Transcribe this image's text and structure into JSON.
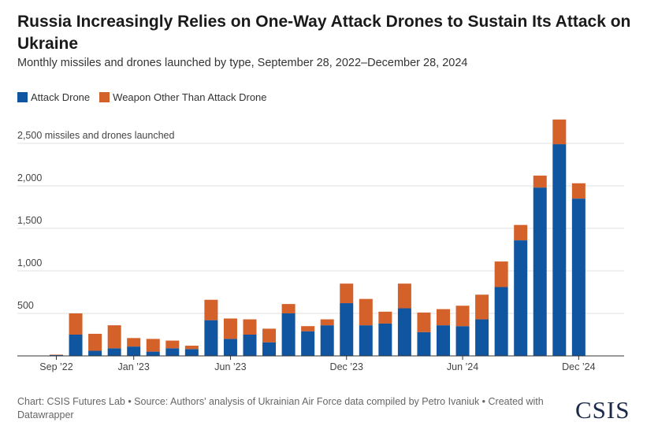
{
  "title": "Russia Increasingly Relies on One-Way Attack Drones to Sustain Its Attack on Ukraine",
  "subtitle": "Monthly missiles and drones launched by type, September 28, 2022–December 28, 2024",
  "legend": [
    {
      "label": "Attack Drone",
      "color": "#1055a0"
    },
    {
      "label": "Weapon Other Than Attack Drone",
      "color": "#d4602a"
    }
  ],
  "footer": "Chart: CSIS Futures Lab • Source: Authors' analysis of Ukrainian Air Force data compiled by Petro Ivaniuk • Created with Datawrapper",
  "logo": "CSIS",
  "chart_data": {
    "type": "bar",
    "stacked": true,
    "categories": [
      "Sep 2022",
      "Oct 2022",
      "Nov 2022",
      "Dec 2022",
      "Jan 2023",
      "Feb 2023",
      "Mar 2023",
      "Apr 2023",
      "May 2023",
      "Jun 2023",
      "Jul 2023",
      "Aug 2023",
      "Sep 2023",
      "Oct 2023",
      "Nov 2023",
      "Dec 2023",
      "Jan 2024",
      "Feb 2024",
      "Mar 2024",
      "Apr 2024",
      "May 2024",
      "Jun 2024",
      "Jul 2024",
      "Aug 2024",
      "Sep 2024",
      "Oct 2024",
      "Nov 2024",
      "Dec 2024"
    ],
    "x_tick_labels": [
      {
        "index": 0,
        "label": "Sep ’22"
      },
      {
        "index": 4,
        "label": "Jan ’23"
      },
      {
        "index": 9,
        "label": "Jun ’23"
      },
      {
        "index": 15,
        "label": "Dec ’23"
      },
      {
        "index": 21,
        "label": "Jun ’24"
      },
      {
        "index": 27,
        "label": "Dec ’24"
      }
    ],
    "series": [
      {
        "name": "Attack Drone",
        "color": "#1055a0",
        "values": [
          10,
          250,
          60,
          90,
          110,
          50,
          90,
          80,
          420,
          200,
          250,
          160,
          500,
          290,
          360,
          620,
          360,
          380,
          560,
          280,
          360,
          350,
          430,
          810,
          1360,
          1980,
          2490,
          1850
        ]
      },
      {
        "name": "Weapon Other Than Attack Drone",
        "color": "#d4602a",
        "values": [
          5,
          250,
          200,
          270,
          100,
          150,
          90,
          40,
          240,
          240,
          180,
          160,
          110,
          60,
          70,
          230,
          310,
          140,
          290,
          230,
          190,
          240,
          290,
          300,
          180,
          140,
          290,
          180
        ]
      }
    ],
    "y_ticks": [
      500,
      1000,
      1500,
      2000,
      2500
    ],
    "y_tick_labels": [
      "500",
      "1,000",
      "1,500",
      "2,000",
      "2,500 missiles and drones launched"
    ],
    "ylim": [
      0,
      2800
    ],
    "grid": true,
    "legend_position": "top-left"
  }
}
